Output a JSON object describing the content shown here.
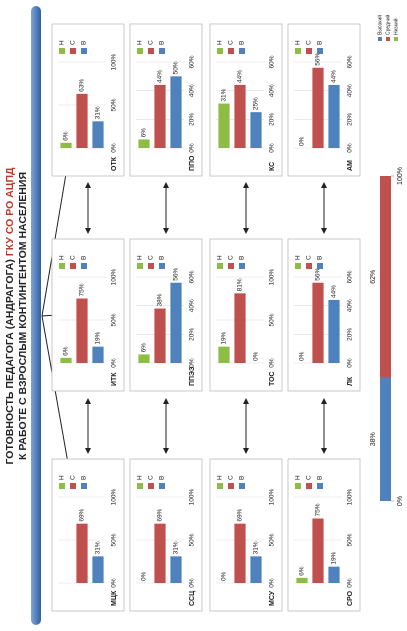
{
  "header": {
    "line1": "ГОТОВНОСТЬ ПЕДАГОГА (АНДРАГОГА) ",
    "line1_accent": "ГКУ СО РО АЦПД",
    "line2": "К РАБОТЕ С ВЗРОСЛЫМ КОНТИНГЕНТОМ НАСЕЛЕНИЯ"
  },
  "chart_data": [
    {
      "type": "bar",
      "title": "МЦК",
      "categories": [
        "Н",
        "С",
        "В"
      ],
      "colors": [
        "#8fbc45",
        "#c0504d",
        "#4f81bd"
      ],
      "values": [
        0,
        69,
        31
      ],
      "value_labels": [
        null,
        "69%",
        "31%"
      ],
      "xlim": [
        0,
        100
      ],
      "xticks": [
        {
          "value": 0,
          "label": "0%"
        },
        {
          "value": 50,
          "label": "50%"
        },
        {
          "value": 100,
          "label": "100%"
        }
      ]
    },
    {
      "type": "bar",
      "title": "ИТК",
      "categories": [
        "Н",
        "С",
        "В"
      ],
      "colors": [
        "#8fbc45",
        "#c0504d",
        "#4f81bd"
      ],
      "values": [
        6,
        75,
        19
      ],
      "value_labels": [
        "6%",
        "75%",
        "19%"
      ],
      "xlim": [
        0,
        100
      ],
      "xticks": [
        {
          "value": 0,
          "label": "0%"
        },
        {
          "value": 50,
          "label": "50%"
        },
        {
          "value": 100,
          "label": "100%"
        }
      ]
    },
    {
      "type": "bar",
      "title": "ОТК",
      "categories": [
        "Н",
        "С",
        "В"
      ],
      "colors": [
        "#8fbc45",
        "#c0504d",
        "#4f81bd"
      ],
      "values": [
        6,
        63,
        31
      ],
      "value_labels": [
        "6%",
        "63%",
        "31%"
      ],
      "xlim": [
        0,
        100
      ],
      "xticks": [
        {
          "value": 0,
          "label": "0%"
        },
        {
          "value": 50,
          "label": "50%"
        },
        {
          "value": 100,
          "label": "100%"
        }
      ]
    },
    {
      "type": "bar",
      "title": "ССЦ",
      "categories": [
        "Н",
        "С",
        "В"
      ],
      "colors": [
        "#8fbc45",
        "#c0504d",
        "#4f81bd"
      ],
      "values": [
        0,
        69,
        31
      ],
      "value_labels": [
        "0%",
        "69%",
        "31%"
      ],
      "xlim": [
        0,
        100
      ],
      "xticks": [
        {
          "value": 0,
          "label": "0%"
        },
        {
          "value": 50,
          "label": "50%"
        },
        {
          "value": 100,
          "label": "100%"
        }
      ]
    },
    {
      "type": "bar",
      "title": "ППЭЗ",
      "categories": [
        "Н",
        "С",
        "В"
      ],
      "colors": [
        "#8fbc45",
        "#c0504d",
        "#4f81bd"
      ],
      "values": [
        6,
        38,
        56
      ],
      "value_labels": [
        "6%",
        "38%",
        "56%"
      ],
      "xlim": [
        0,
        60
      ],
      "xticks": [
        {
          "value": 0,
          "label": "0%"
        },
        {
          "value": 20,
          "label": "20%"
        },
        {
          "value": 40,
          "label": "40%"
        },
        {
          "value": 60,
          "label": "60%"
        }
      ]
    },
    {
      "type": "bar",
      "title": "ППО",
      "categories": [
        "Н",
        "С",
        "В"
      ],
      "colors": [
        "#8fbc45",
        "#c0504d",
        "#4f81bd"
      ],
      "values": [
        6,
        44,
        50
      ],
      "value_labels": [
        "6%",
        "44%",
        "50%"
      ],
      "xlim": [
        0,
        60
      ],
      "xticks": [
        {
          "value": 0,
          "label": "0%"
        },
        {
          "value": 20,
          "label": "20%"
        },
        {
          "value": 40,
          "label": "40%"
        },
        {
          "value": 60,
          "label": "60%"
        }
      ]
    },
    {
      "type": "bar",
      "title": "МСУ",
      "categories": [
        "Н",
        "С",
        "В"
      ],
      "colors": [
        "#8fbc45",
        "#c0504d",
        "#4f81bd"
      ],
      "values": [
        0,
        69,
        31
      ],
      "value_labels": [
        "0%",
        "69%",
        "31%"
      ],
      "xlim": [
        0,
        100
      ],
      "xticks": [
        {
          "value": 0,
          "label": "0%"
        },
        {
          "value": 50,
          "label": "50%"
        },
        {
          "value": 100,
          "label": "100%"
        }
      ]
    },
    {
      "type": "bar",
      "title": "ТОС",
      "categories": [
        "Н",
        "С",
        "В"
      ],
      "colors": [
        "#8fbc45",
        "#c0504d",
        "#4f81bd"
      ],
      "values": [
        19,
        81,
        0
      ],
      "value_labels": [
        "19%",
        "81%",
        "0%"
      ],
      "xlim": [
        0,
        100
      ],
      "xticks": [
        {
          "value": 0,
          "label": "0%"
        },
        {
          "value": 50,
          "label": "50%"
        },
        {
          "value": 100,
          "label": "100%"
        }
      ]
    },
    {
      "type": "bar",
      "title": "КС",
      "categories": [
        "Н",
        "С",
        "В"
      ],
      "colors": [
        "#8fbc45",
        "#c0504d",
        "#4f81bd"
      ],
      "values": [
        31,
        44,
        25
      ],
      "value_labels": [
        "31%",
        "44%",
        "25%"
      ],
      "xlim": [
        0,
        60
      ],
      "xticks": [
        {
          "value": 0,
          "label": "0%"
        },
        {
          "value": 20,
          "label": "20%"
        },
        {
          "value": 40,
          "label": "40%"
        },
        {
          "value": 60,
          "label": "60%"
        }
      ]
    },
    {
      "type": "bar",
      "title": "СРО",
      "categories": [
        "Н",
        "С",
        "В"
      ],
      "colors": [
        "#8fbc45",
        "#c0504d",
        "#4f81bd"
      ],
      "values": [
        6,
        75,
        19
      ],
      "value_labels": [
        "6%",
        "75%",
        "19%"
      ],
      "xlim": [
        0,
        100
      ],
      "xticks": [
        {
          "value": 0,
          "label": "0%"
        },
        {
          "value": 50,
          "label": "50%"
        },
        {
          "value": 100,
          "label": "100%"
        }
      ]
    },
    {
      "type": "bar",
      "title": "ЛК",
      "categories": [
        "Н",
        "С",
        "В"
      ],
      "colors": [
        "#8fbc45",
        "#c0504d",
        "#4f81bd"
      ],
      "values": [
        0,
        56,
        44
      ],
      "value_labels": [
        "0%",
        "56%",
        "44%"
      ],
      "xlim": [
        0,
        60
      ],
      "xticks": [
        {
          "value": 0,
          "label": "0%"
        },
        {
          "value": 20,
          "label": "20%"
        },
        {
          "value": 40,
          "label": "40%"
        },
        {
          "value": 60,
          "label": "60%"
        }
      ]
    },
    {
      "type": "bar",
      "title": "АМ",
      "categories": [
        "Н",
        "С",
        "В"
      ],
      "colors": [
        "#8fbc45",
        "#c0504d",
        "#4f81bd"
      ],
      "values": [
        0,
        56,
        44
      ],
      "value_labels": [
        "0%",
        "56%",
        "44%"
      ],
      "xlim": [
        0,
        60
      ],
      "xticks": [
        {
          "value": 0,
          "label": "0%"
        },
        {
          "value": 20,
          "label": "20%"
        },
        {
          "value": 40,
          "label": "40%"
        },
        {
          "value": 60,
          "label": "60%"
        }
      ]
    },
    {
      "type": "stacked-bar",
      "series": [
        {
          "name": "Высокий",
          "color": "#4f81bd",
          "values": [
            38
          ],
          "value_labels": [
            "38%"
          ]
        },
        {
          "name": "Средний",
          "color": "#c0504d",
          "values": [
            62
          ],
          "value_labels": [
            "62%"
          ]
        },
        {
          "name": "Низкий",
          "color": "#8fbc45",
          "values": [
            0
          ]
        }
      ],
      "xlim": [
        0,
        100
      ],
      "xticks": [
        {
          "value": 0,
          "label": "0%"
        },
        {
          "value": 100,
          "label": "100%"
        }
      ]
    }
  ]
}
